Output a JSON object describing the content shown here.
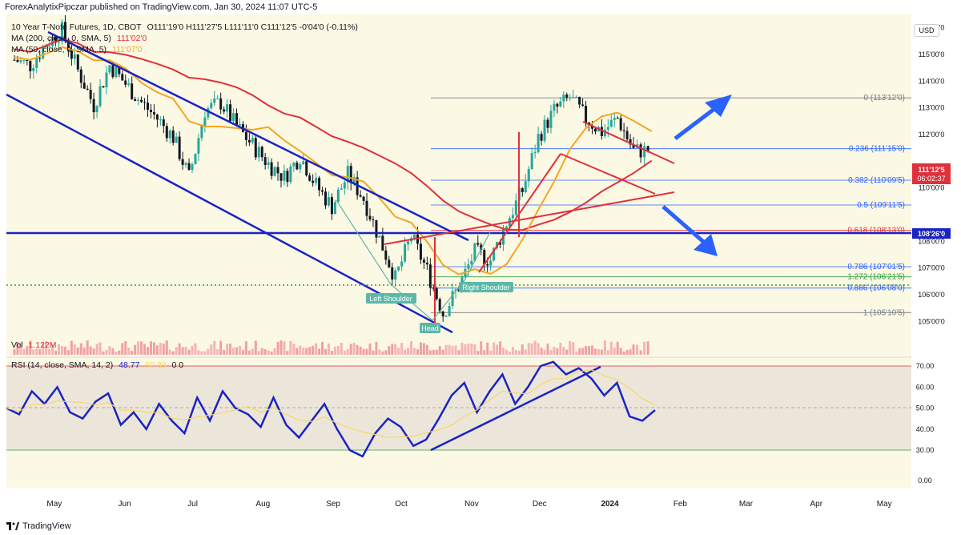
{
  "header": {
    "publisher": "ForexAnalytixPipczar published on TradingView.com, Jan 30, 2024 11:07 UTC-5",
    "symbol_line": "10 Year T-Note Futures, 1D, CBOT",
    "ohlc": "O111'19'0  H111'27'5  L111'11'0  C111'12'5  -0'04'0 (-0.11%)",
    "ma200_label": "MA (200, close, 0, SMA, 5)",
    "ma200_value": "111'02'0",
    "ma50_label": "MA (50, close, 0, SMA, 5)",
    "ma50_value": "111'07'0",
    "currency": "USD",
    "vol_label": "Vol",
    "vol_value": "1.122M",
    "rsi_label": "RSI (14, close, SMA, 14, 2)",
    "rsi_value": "48.77",
    "rsi_ma_value": "50.39",
    "rsi_extra": "0  0"
  },
  "footer": {
    "brand": "TradingView"
  },
  "colors": {
    "background": "#fbf8e4",
    "candle_up": "#26a69a",
    "candle_down": "#131722",
    "ma200": "#e0303a",
    "ma50": "#f5a623",
    "channel": "#1a23c4",
    "fib": "#2962ff",
    "arrow": "#2962ff",
    "rsi": "#1a23c4",
    "rsi_ma": "#f5d76e",
    "price_tag": "#e0303a",
    "level_tag": "#1a23c4"
  },
  "chart_data": {
    "type": "candlestick",
    "x_axis": [
      "May",
      "Jun",
      "Jul",
      "Aug",
      "Sep",
      "Oct",
      "Nov",
      "Dec",
      "2024",
      "Feb",
      "Mar",
      "Apr",
      "May"
    ],
    "y_axis_labels": [
      "116'00'0",
      "115'00'0",
      "114'00'0",
      "113'00'0",
      "112'00'0",
      "110'00'0",
      "108'00'0",
      "107'00'0",
      "106'00'0",
      "105'00'0"
    ],
    "y_range": [
      104.5,
      116.5
    ],
    "close_path": [
      [
        "2023-04-24",
        114.8
      ],
      [
        "2023-05-01",
        114.6
      ],
      [
        "2023-05-08",
        115.4
      ],
      [
        "2023-05-15",
        115.9
      ],
      [
        "2023-05-22",
        114.4
      ],
      [
        "2023-05-29",
        113.1
      ],
      [
        "2023-06-05",
        114.6
      ],
      [
        "2023-06-12",
        113.9
      ],
      [
        "2023-06-19",
        113.2
      ],
      [
        "2023-06-26",
        112.6
      ],
      [
        "2023-07-03",
        111.9
      ],
      [
        "2023-07-10",
        110.4
      ],
      [
        "2023-07-17",
        112.9
      ],
      [
        "2023-07-24",
        113.2
      ],
      [
        "2023-07-31",
        112.3
      ],
      [
        "2023-08-07",
        111.6
      ],
      [
        "2023-08-14",
        110.9
      ],
      [
        "2023-08-21",
        110.4
      ],
      [
        "2023-08-28",
        111.2
      ],
      [
        "2023-09-04",
        110.1
      ],
      [
        "2023-09-11",
        109.3
      ],
      [
        "2023-09-18",
        110.5
      ],
      [
        "2023-09-25",
        109.6
      ],
      [
        "2023-10-02",
        108.1
      ],
      [
        "2023-10-09",
        106.6
      ],
      [
        "2023-10-16",
        108.2
      ],
      [
        "2023-10-23",
        106.9
      ],
      [
        "2023-10-30",
        105.3
      ],
      [
        "2023-11-06",
        106.3
      ],
      [
        "2023-11-13",
        107.6
      ],
      [
        "2023-11-20",
        107.3
      ],
      [
        "2023-11-27",
        108.7
      ],
      [
        "2023-12-04",
        109.9
      ],
      [
        "2023-12-11",
        111.9
      ],
      [
        "2023-12-18",
        112.9
      ],
      [
        "2023-12-25",
        113.4
      ],
      [
        "2024-01-01",
        112.6
      ],
      [
        "2024-01-08",
        112.1
      ],
      [
        "2024-01-15",
        112.6
      ],
      [
        "2024-01-22",
        111.4
      ],
      [
        "2024-01-30",
        111.4
      ]
    ],
    "last_price": "111'12'5",
    "countdown": "06:02:37",
    "horizontal_level": "108'26'0",
    "fib_levels": [
      {
        "ratio": "0",
        "price": "113'12'0",
        "value": 113.375
      },
      {
        "ratio": "0.236",
        "price": "111'15'0",
        "value": 111.47
      },
      {
        "ratio": "0.382",
        "price": "110'09'5",
        "value": 110.29
      },
      {
        "ratio": "0.5",
        "price": "109'11'5",
        "value": 109.36
      },
      {
        "ratio": "0.618",
        "price": "108'13'0",
        "value": 108.41
      },
      {
        "ratio": "0.786",
        "price": "107'01'5",
        "value": 107.05
      },
      {
        "ratio": "1.272",
        "price": "106'21'5",
        "value": 106.67
      },
      {
        "ratio": "0.886",
        "price": "106'08'0",
        "value": 106.25
      },
      {
        "ratio": "1",
        "price": "105'10'5",
        "value": 105.33
      }
    ],
    "annotations": [
      "Left Shoulder",
      "Head",
      "Right Shoulder"
    ],
    "rsi": {
      "y_axis_labels": [
        "70.00",
        "60.00",
        "50.00",
        "40.00",
        "30.00",
        "0.00"
      ],
      "values": [
        50,
        47,
        58,
        52,
        60,
        48,
        45,
        53,
        57,
        42,
        48,
        40,
        52,
        44,
        38,
        55,
        44,
        58,
        50,
        47,
        41,
        55,
        42,
        36,
        44,
        52,
        40,
        30,
        27,
        38,
        45,
        41,
        32,
        35,
        45,
        56,
        62,
        48,
        58,
        66,
        52,
        60,
        70,
        72,
        66,
        69,
        64,
        56,
        62,
        46,
        44,
        49
      ]
    }
  }
}
